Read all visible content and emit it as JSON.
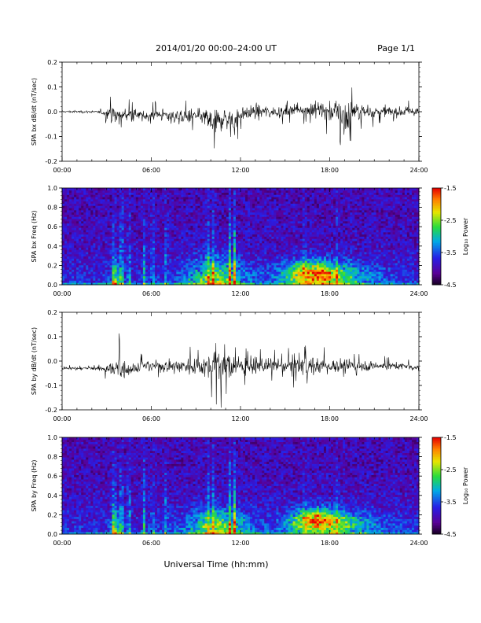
{
  "header": {
    "title": "2014/01/20  00:00–24:00 UT",
    "page": "Page 1/1"
  },
  "chart_data": [
    {
      "type": "line",
      "id": "bx_dbdt",
      "ylabel": "SPA bx dB/dt (nT/sec)",
      "xlim": [
        0,
        24
      ],
      "ylim": [
        -0.2,
        0.2
      ],
      "yticks": [
        "-0.2",
        "-0.1",
        "0.0",
        "0.1",
        "0.2"
      ],
      "ytick_values": [
        -0.2,
        -0.1,
        0.0,
        0.1,
        0.2
      ],
      "xticks": [
        "00:00",
        "06:00",
        "12:00",
        "18:00",
        "24:00"
      ],
      "series": [
        {
          "x": [
            0,
            1,
            2,
            2.8,
            3.2,
            3.5,
            3.8,
            4.0,
            4.3,
            4.8,
            5.5,
            6.5,
            7.5,
            8.5,
            9.5,
            10.0,
            10.5,
            11.0,
            11.4,
            12.0,
            13.0,
            14.0,
            15.0,
            15.5,
            16.5,
            17.5,
            18.0,
            18.6,
            19.0,
            19.5,
            20.0,
            21.0,
            22.0,
            23.0,
            24.0
          ],
          "amplitude": [
            0.01,
            0.012,
            0.012,
            0.02,
            0.1,
            0.08,
            0.13,
            0.09,
            0.06,
            0.06,
            0.05,
            0.06,
            0.07,
            0.07,
            0.07,
            0.13,
            0.12,
            0.1,
            0.15,
            0.08,
            0.07,
            0.06,
            0.05,
            0.07,
            0.06,
            0.09,
            0.1,
            0.12,
            0.2,
            0.1,
            0.08,
            0.06,
            0.05,
            0.05,
            0.04
          ],
          "offset": [
            0.0,
            0.0,
            0.0,
            -0.005,
            -0.01,
            -0.015,
            -0.02,
            -0.02,
            -0.01,
            -0.01,
            -0.02,
            -0.01,
            -0.02,
            -0.02,
            -0.02,
            -0.04,
            -0.04,
            -0.02,
            -0.05,
            -0.01,
            0.0,
            0.0,
            0.0,
            0.01,
            0.01,
            0.01,
            0.0,
            0.0,
            -0.03,
            0.0,
            0.0,
            0.0,
            0.0,
            0.0,
            0.0
          ]
        }
      ]
    },
    {
      "type": "heatmap",
      "id": "bx_freq",
      "ylabel": "SPA bx Freq (Hz)",
      "xlim": [
        0,
        24
      ],
      "ylim": [
        0,
        1.0
      ],
      "yticks": [
        "0.0",
        "0.2",
        "0.4",
        "0.6",
        "0.8",
        "1.0"
      ],
      "ytick_values": [
        0.0,
        0.2,
        0.4,
        0.6,
        0.8,
        1.0
      ],
      "xticks": [
        "00:00",
        "06:00",
        "12:00",
        "18:00",
        "24:00"
      ],
      "colorbar": {
        "label": "Log₁₀ Power",
        "ticks": [
          "-1.5",
          "-2.5",
          "-3.5",
          "-4.5"
        ],
        "tick_values": [
          -1.5,
          -2.5,
          -3.5,
          -4.5
        ],
        "range": [
          -4.5,
          -1.5
        ]
      },
      "features": {
        "streaks": [
          [
            3.5,
            0.45
          ],
          [
            4.0,
            0.6
          ],
          [
            4.5,
            0.35
          ],
          [
            5.5,
            0.35
          ],
          [
            6.1,
            0.3
          ],
          [
            7.0,
            0.3
          ],
          [
            9.8,
            0.5
          ],
          [
            10.2,
            0.45
          ],
          [
            11.3,
            0.6
          ],
          [
            11.6,
            0.55
          ],
          [
            16.3,
            0.2
          ],
          [
            18.5,
            0.25
          ]
        ],
        "enhancements": [
          [
            3.6,
            0.02,
            0.3,
            0.18,
            1.6
          ],
          [
            10.3,
            0.05,
            1.8,
            0.22,
            1.9
          ],
          [
            16.8,
            0.12,
            1.7,
            0.12,
            2.3
          ],
          [
            18.0,
            0.08,
            3.0,
            0.15,
            1.4
          ]
        ]
      }
    },
    {
      "type": "line",
      "id": "by_dbdt",
      "ylabel": "SPA by dB/dt (nT/sec)",
      "xlim": [
        0,
        24
      ],
      "ylim": [
        -0.2,
        0.2
      ],
      "yticks": [
        "-0.2",
        "-0.1",
        "0.0",
        "0.1",
        "0.2"
      ],
      "ytick_values": [
        -0.2,
        -0.1,
        0.0,
        0.1,
        0.2
      ],
      "xticks": [
        "00:00",
        "06:00",
        "12:00",
        "18:00",
        "24:00"
      ],
      "series": [
        {
          "x": [
            0,
            1,
            2,
            2.8,
            3.2,
            3.5,
            3.8,
            4.0,
            4.3,
            4.8,
            5.5,
            6.5,
            7.5,
            8.5,
            9.5,
            10.0,
            10.5,
            11.0,
            11.4,
            12.0,
            13.0,
            14.0,
            15.0,
            15.5,
            16.5,
            17.5,
            18.0,
            18.6,
            19.0,
            19.5,
            20.0,
            21.0,
            22.0,
            23.0,
            24.0
          ],
          "amplitude": [
            0.015,
            0.015,
            0.015,
            0.03,
            0.08,
            0.1,
            0.16,
            0.12,
            0.07,
            0.06,
            0.06,
            0.06,
            0.07,
            0.08,
            0.1,
            0.14,
            0.2,
            0.16,
            0.1,
            0.08,
            0.08,
            0.07,
            0.06,
            0.1,
            0.09,
            0.08,
            0.07,
            0.08,
            0.06,
            0.06,
            0.05,
            0.05,
            0.04,
            0.03,
            0.03
          ],
          "offset": [
            -0.03,
            -0.03,
            -0.03,
            -0.03,
            -0.03,
            -0.04,
            -0.03,
            -0.03,
            -0.03,
            -0.03,
            -0.02,
            -0.02,
            -0.02,
            -0.02,
            -0.02,
            -0.02,
            -0.01,
            -0.02,
            -0.02,
            -0.02,
            -0.02,
            -0.02,
            -0.02,
            -0.01,
            -0.02,
            -0.02,
            -0.02,
            -0.02,
            -0.02,
            -0.02,
            -0.02,
            -0.02,
            -0.02,
            -0.02,
            -0.03
          ]
        }
      ]
    },
    {
      "type": "heatmap",
      "id": "by_freq",
      "ylabel": "SPA by Freq (Hz)",
      "xlim": [
        0,
        24
      ],
      "ylim": [
        0,
        1.0
      ],
      "yticks": [
        "0.0",
        "0.2",
        "0.4",
        "0.6",
        "0.8",
        "1.0"
      ],
      "ytick_values": [
        0.0,
        0.2,
        0.4,
        0.6,
        0.8,
        1.0
      ],
      "xticks": [
        "00:00",
        "06:00",
        "12:00",
        "18:00",
        "24:00"
      ],
      "colorbar": {
        "label": "Log₁₀ Power",
        "ticks": [
          "-1.5",
          "-2.5",
          "-3.5",
          "-4.5"
        ],
        "tick_values": [
          -1.5,
          -2.5,
          -3.5,
          -4.5
        ],
        "range": [
          -4.5,
          -1.5
        ]
      },
      "features": {
        "streaks": [
          [
            3.5,
            0.45
          ],
          [
            4.0,
            0.55
          ],
          [
            4.5,
            0.35
          ],
          [
            5.5,
            0.35
          ],
          [
            6.1,
            0.3
          ],
          [
            7.0,
            0.3
          ],
          [
            9.8,
            0.45
          ],
          [
            10.2,
            0.4
          ],
          [
            11.3,
            0.5
          ],
          [
            11.6,
            0.5
          ],
          [
            16.3,
            0.2
          ],
          [
            18.5,
            0.25
          ]
        ],
        "enhancements": [
          [
            3.6,
            0.05,
            0.3,
            0.2,
            1.6
          ],
          [
            10.5,
            0.08,
            2.0,
            0.18,
            1.8
          ],
          [
            17.0,
            0.15,
            1.6,
            0.12,
            2.3
          ],
          [
            18.5,
            0.1,
            2.8,
            0.14,
            1.4
          ]
        ]
      }
    }
  ],
  "xlabel": "Universal Time (hh:mm)"
}
